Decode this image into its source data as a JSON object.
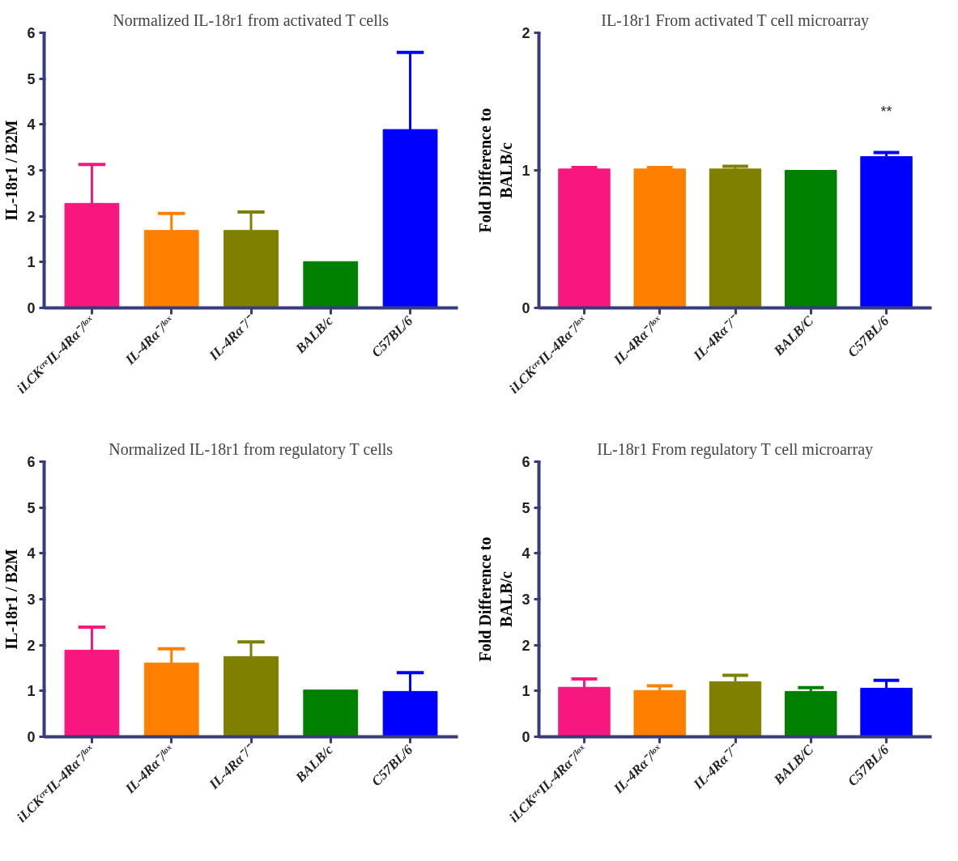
{
  "chart_data": [
    {
      "type": "bar",
      "title": "Normalized IL-18r1 from activated T cells",
      "ylabel": "IL-18r1 / B2M",
      "categories": [
        "iLCKᶜʳᵉIL-4Rα⁻/ˡᵒˣ",
        "IL-4Rα⁻/ˡᵒˣ",
        "IL-4Rα⁻/⁻",
        "BALB/c",
        "C57BL/6"
      ],
      "values": [
        2.28,
        1.69,
        1.69,
        1.01,
        3.89
      ],
      "colors": [
        "#f7177f",
        "#ff8000",
        "#808000",
        "#008000",
        "#0000ff"
      ],
      "errors": [
        [
          2.28,
          3.13
        ],
        [
          1.69,
          2.06
        ],
        [
          1.69,
          2.09
        ],
        null,
        [
          3.89,
          5.57
        ]
      ],
      "ylim": [
        0,
        6
      ],
      "yticks": [
        0,
        1,
        2,
        3,
        4,
        5,
        6
      ],
      "grid": false
    },
    {
      "type": "bar",
      "title": "IL-18r1 From activated T cell microarray",
      "ylabel": "Fold Difference to\nBALB/c",
      "categories": [
        "iLCKᶜʳᵉIL-4Rα⁻/ˡᵒˣ",
        "IL-4Rα⁻/ˡᵒˣ",
        "IL-4Rα⁻/⁻",
        "BALB/C",
        "C57BL/6"
      ],
      "values": [
        1.01,
        1.01,
        1.01,
        1.0,
        1.1
      ],
      "colors": [
        "#f7177f",
        "#ff8000",
        "#808000",
        "#008000",
        "#0000ff"
      ],
      "errors": [
        [
          1.01,
          1.02
        ],
        [
          1.01,
          1.02
        ],
        [
          1.01,
          1.03
        ],
        null,
        [
          1.1,
          1.13
        ]
      ],
      "annotations": [
        "**"
      ],
      "ylim": [
        0,
        2
      ],
      "yticks": [
        0,
        1,
        2
      ],
      "grid": false
    },
    {
      "type": "bar",
      "title": "Normalized IL-18r1 from regulatory T cells",
      "ylabel": "IL-18r1 / B2M",
      "categories": [
        "iLCKᶜʳᵉIL-4Rα⁻/ˡᵒˣ",
        "IL-4Rα⁻/ˡᵒˣ",
        "IL-4Rα⁻/⁻",
        "BALB/c",
        "C57BL/6"
      ],
      "values": [
        1.89,
        1.61,
        1.75,
        1.02,
        0.99
      ],
      "colors": [
        "#f7177f",
        "#ff8000",
        "#808000",
        "#008000",
        "#0000ff"
      ],
      "errors": [
        [
          1.89,
          2.39
        ],
        [
          1.61,
          1.92
        ],
        [
          1.75,
          2.07
        ],
        null,
        [
          0.99,
          1.4
        ]
      ],
      "ylim": [
        0,
        6
      ],
      "yticks": [
        0,
        1,
        2,
        3,
        4,
        5,
        6
      ],
      "grid": false
    },
    {
      "type": "bar",
      "title": "IL-18r1 From regulatory T cell microarray",
      "ylabel": "Fold Difference to\nBALB/c",
      "categories": [
        "iLCKᶜʳᵉIL-4Rα⁻/ˡᵒˣ",
        "IL-4Rα⁻/ˡᵒˣ",
        "IL-4Rα⁻/⁻",
        "BALB/C",
        "C57BL/6"
      ],
      "values": [
        1.08,
        1.01,
        1.2,
        0.99,
        1.06
      ],
      "colors": [
        "#f7177f",
        "#ff8000",
        "#808000",
        "#008000",
        "#0000ff"
      ],
      "errors": [
        [
          1.08,
          1.26
        ],
        [
          1.01,
          1.11
        ],
        [
          1.2,
          1.34
        ],
        [
          0.99,
          1.07
        ],
        [
          1.06,
          1.23
        ]
      ],
      "ylim": [
        0,
        6
      ],
      "yticks": [
        0,
        1,
        2,
        3,
        4,
        5,
        6
      ],
      "grid": false
    }
  ]
}
